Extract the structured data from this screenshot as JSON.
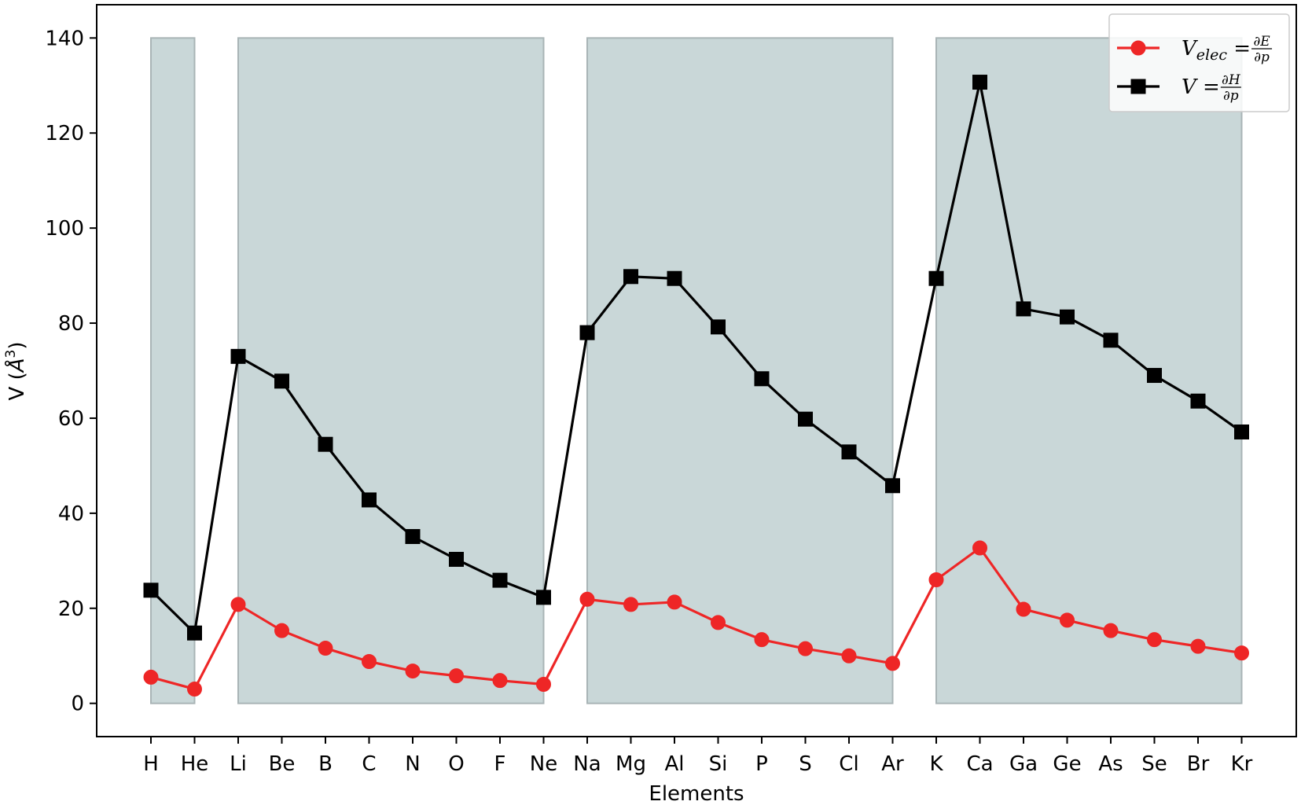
{
  "chart_data": {
    "type": "line",
    "categories": [
      "H",
      "He",
      "Li",
      "Be",
      "B",
      "C",
      "N",
      "O",
      "F",
      "Ne",
      "Na",
      "Mg",
      "Al",
      "Si",
      "P",
      "S",
      "Cl",
      "Ar",
      "K",
      "Ca",
      "Ga",
      "Ge",
      "As",
      "Se",
      "Br",
      "Kr"
    ],
    "xlabel": "Elements",
    "ylabel_prefix": "V (",
    "ylabel_unit": "Å",
    "ylabel_exp": "3",
    "ylabel_suffix": ")",
    "ylim": [
      -7,
      147
    ],
    "yticks": [
      0,
      20,
      40,
      60,
      80,
      100,
      120,
      140
    ],
    "grid": false,
    "legend_position": "top-right",
    "shaded_periods": [
      {
        "from": "H",
        "to": "He"
      },
      {
        "from": "Li",
        "to": "Ne"
      },
      {
        "from": "Na",
        "to": "Ar"
      },
      {
        "from": "K",
        "to": "Kr"
      }
    ],
    "shade_top": 140,
    "shade_color": "#c9d7d8",
    "series": [
      {
        "name": "V_elec = ∂E/∂p",
        "color": "#ee2626",
        "marker": "circle",
        "values": [
          5.5,
          3.0,
          20.8,
          15.3,
          11.6,
          8.8,
          6.8,
          5.8,
          4.8,
          4.0,
          21.9,
          20.8,
          21.3,
          17.0,
          13.4,
          11.5,
          10.0,
          8.4,
          26.0,
          32.7,
          19.8,
          17.5,
          15.3,
          13.4,
          12.0,
          10.6
        ]
      },
      {
        "name": "V = ∂H/∂p",
        "color": "#000000",
        "marker": "square",
        "values": [
          23.8,
          14.8,
          73.0,
          67.8,
          54.5,
          42.8,
          35.1,
          30.3,
          25.9,
          22.3,
          78.0,
          89.8,
          89.4,
          79.2,
          68.3,
          59.8,
          52.9,
          45.8,
          89.4,
          130.7,
          83.0,
          81.3,
          76.4,
          69.0,
          63.6,
          57.1
        ]
      }
    ],
    "legend": [
      {
        "main": "V",
        "sub": "elec",
        "eq": " = ",
        "num": "∂E",
        "den": "∂p",
        "series": 0
      },
      {
        "main": "V",
        "sub": "",
        "eq": " = ",
        "num": "∂H",
        "den": "∂p",
        "series": 1
      }
    ]
  }
}
